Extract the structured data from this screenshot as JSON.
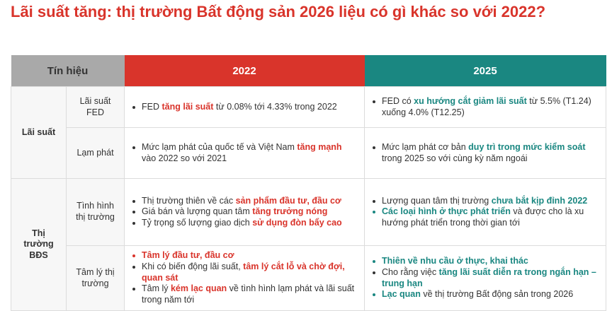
{
  "title": "Lãi suất tăng: thị trường Bất động sản 2026 liệu có gì khác so với 2022?",
  "table": {
    "header": [
      "Tín hiệu",
      "2022",
      "2025"
    ],
    "groups": [
      {
        "label": "Lãi suất",
        "rows": [
          {
            "signal": "Lãi suất FED",
            "cells": [
              [
                [
                  {
                    "text": "FED ",
                    "highlight": false
                  },
                  {
                    "text": "tăng lãi suất",
                    "highlight": true
                  },
                  {
                    "text": " từ 0.08% tới 4.33% trong 2022",
                    "highlight": false
                  }
                ]
              ],
              [
                [
                  {
                    "text": "FED có ",
                    "highlight": false
                  },
                  {
                    "text": "xu hướng cắt giảm lãi suất",
                    "highlight": true
                  },
                  {
                    "text": " từ 5.5% (T1.24) xuống 4.0% (T12.25)",
                    "highlight": false
                  }
                ]
              ]
            ]
          },
          {
            "signal": "Lạm phát",
            "cells": [
              [
                [
                  {
                    "text": "Mức lạm phát của quốc tế và Việt Nam ",
                    "highlight": false
                  },
                  {
                    "text": "tăng mạnh",
                    "highlight": true
                  },
                  {
                    "text": " vào 2022 so với 2021",
                    "highlight": false
                  }
                ]
              ],
              [
                [
                  {
                    "text": "Mức lạm phát cơ bản ",
                    "highlight": false
                  },
                  {
                    "text": "duy trì trong mức kiểm soát",
                    "highlight": true
                  },
                  {
                    "text": " trong 2025 so với cùng kỳ năm ngoái",
                    "highlight": false
                  }
                ]
              ]
            ]
          }
        ]
      },
      {
        "label": "Thị trường BĐS",
        "rows": [
          {
            "signal": "Tình hình thị trường",
            "cells": [
              [
                [
                  {
                    "text": "Thị trường thiên về các ",
                    "highlight": false
                  },
                  {
                    "text": "sản phẩm đầu tư, đầu cơ",
                    "highlight": true
                  }
                ],
                [
                  {
                    "text": "Giá bán và lượng quan tâm ",
                    "highlight": false
                  },
                  {
                    "text": "tăng trưởng nóng",
                    "highlight": true
                  }
                ],
                [
                  {
                    "text": "Tỷ trọng số lượng giao dịch ",
                    "highlight": false
                  },
                  {
                    "text": "sử dụng đòn bẩy cao",
                    "highlight": true
                  }
                ]
              ],
              [
                [
                  {
                    "text": "Lượng quan tâm thị trường ",
                    "highlight": false
                  },
                  {
                    "text": "chưa bắt kịp đỉnh 2022",
                    "highlight": true
                  }
                ],
                [
                  {
                    "text": "Các loại hình ở thực phát triển",
                    "highlight": true
                  },
                  {
                    "text": " và được cho là xu hướng phát triển trong thời gian tới",
                    "highlight": false
                  }
                ]
              ]
            ]
          },
          {
            "signal": "Tâm lý thị trường",
            "cells": [
              [
                [
                  {
                    "text": "Tâm lý đầu tư, đầu cơ",
                    "highlight": true
                  }
                ],
                [
                  {
                    "text": "Khi có biến động lãi suất, ",
                    "highlight": false
                  },
                  {
                    "text": "tâm lý cắt lỗ và chờ đợi, quan sát",
                    "highlight": true
                  }
                ],
                [
                  {
                    "text": "Tâm lý ",
                    "highlight": false
                  },
                  {
                    "text": "kém lạc quan",
                    "highlight": true
                  },
                  {
                    "text": " về tình hình lạm phát và lãi suất trong năm tới",
                    "highlight": false
                  }
                ]
              ],
              [
                [
                  {
                    "text": "Thiên về nhu cầu ở thực, khai thác",
                    "highlight": true
                  }
                ],
                [
                  {
                    "text": "Cho rằng việc ",
                    "highlight": false
                  },
                  {
                    "text": "tăng lãi suất diễn ra trong ngắn hạn – trung hạn",
                    "highlight": true
                  }
                ],
                [
                  {
                    "text": "Lạc quan",
                    "highlight": true
                  },
                  {
                    "text": " về thị trường Bất động sản trong 2026",
                    "highlight": false
                  }
                ]
              ]
            ]
          }
        ]
      }
    ]
  }
}
